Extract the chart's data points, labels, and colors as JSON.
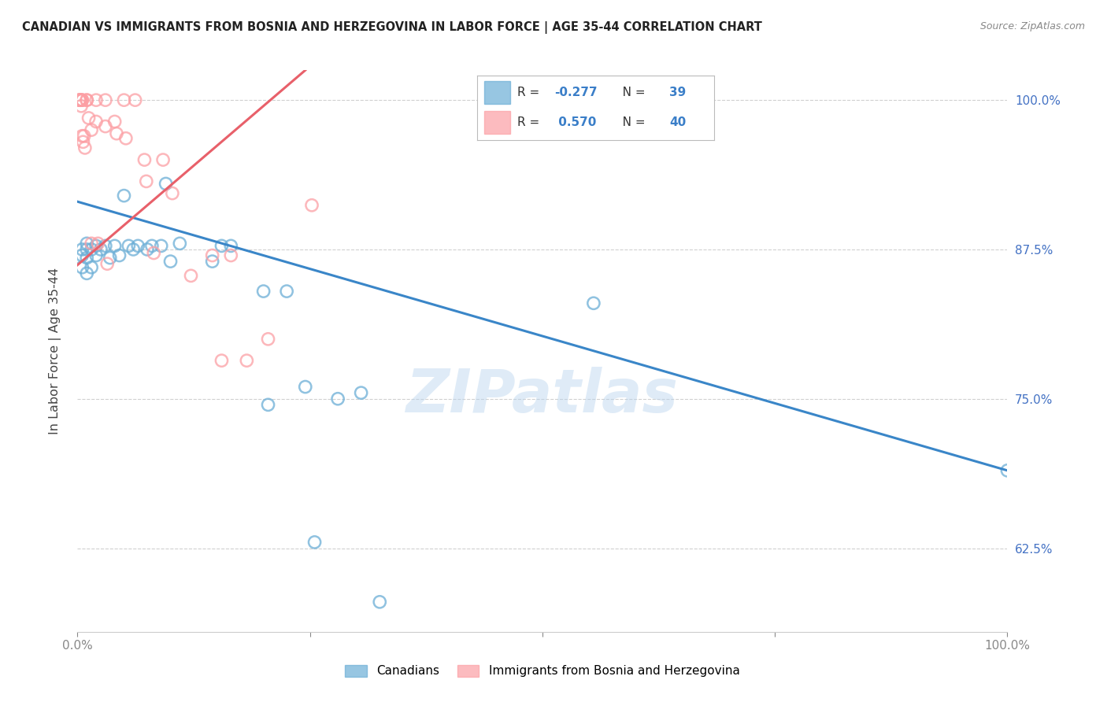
{
  "title": "CANADIAN VS IMMIGRANTS FROM BOSNIA AND HERZEGOVINA IN LABOR FORCE | AGE 35-44 CORRELATION CHART",
  "source": "Source: ZipAtlas.com",
  "ylabel": "In Labor Force | Age 35-44",
  "xlim": [
    0.0,
    1.0
  ],
  "ylim": [
    0.555,
    1.025
  ],
  "yticks": [
    0.625,
    0.75,
    0.875,
    1.0
  ],
  "ytick_labels": [
    "62.5%",
    "75.0%",
    "87.5%",
    "100.0%"
  ],
  "xticks": [
    0.0,
    0.25,
    0.5,
    0.75,
    1.0
  ],
  "xtick_labels": [
    "0.0%",
    "",
    "",
    "",
    "100.0%"
  ],
  "watermark": "ZIPatlas",
  "legend_label_canadian": "Canadians",
  "legend_label_immigrants": "Immigrants from Bosnia and Herzegovina",
  "r_canadian": "-0.277",
  "n_canadian": "39",
  "r_immigrants": "0.570",
  "n_immigrants": "40",
  "blue_color": "#6baed6",
  "pink_color": "#fc9fa4",
  "blue_line_color": "#3a86c8",
  "pink_line_color": "#e8606a",
  "blue_scatter_edge": "#5a9fc8",
  "pink_scatter_edge": "#e87880",
  "canadians_x": [
    0.005,
    0.005,
    0.005,
    0.01,
    0.01,
    0.01,
    0.01,
    0.015,
    0.015,
    0.02,
    0.02,
    0.025,
    0.03,
    0.035,
    0.04,
    0.045,
    0.05,
    0.055,
    0.06,
    0.065,
    0.075,
    0.08,
    0.09,
    0.095,
    0.1,
    0.11,
    0.145,
    0.155,
    0.165,
    0.2,
    0.205,
    0.225,
    0.245,
    0.255,
    0.28,
    0.305,
    0.325,
    0.555,
    1.0
  ],
  "canadians_y": [
    0.875,
    0.87,
    0.86,
    0.88,
    0.875,
    0.868,
    0.855,
    0.875,
    0.86,
    0.878,
    0.87,
    0.875,
    0.878,
    0.868,
    0.878,
    0.87,
    0.92,
    0.878,
    0.875,
    0.878,
    0.875,
    0.878,
    0.878,
    0.93,
    0.865,
    0.88,
    0.865,
    0.878,
    0.878,
    0.84,
    0.745,
    0.84,
    0.76,
    0.63,
    0.75,
    0.755,
    0.58,
    0.83,
    0.69
  ],
  "immigrants_x": [
    0.002,
    0.002,
    0.003,
    0.003,
    0.004,
    0.004,
    0.005,
    0.005,
    0.005,
    0.006,
    0.007,
    0.008,
    0.01,
    0.01,
    0.012,
    0.015,
    0.015,
    0.02,
    0.02,
    0.022,
    0.03,
    0.03,
    0.032,
    0.04,
    0.042,
    0.05,
    0.052,
    0.062,
    0.072,
    0.074,
    0.082,
    0.092,
    0.102,
    0.122,
    0.145,
    0.155,
    0.165,
    0.182,
    0.205,
    0.252
  ],
  "immigrants_y": [
    1.0,
    1.0,
    1.0,
    1.0,
    1.0,
    0.995,
    1.0,
    1.0,
    0.97,
    0.965,
    0.97,
    0.96,
    1.0,
    1.0,
    0.985,
    0.975,
    0.88,
    1.0,
    0.982,
    0.88,
    1.0,
    0.978,
    0.863,
    0.982,
    0.972,
    1.0,
    0.968,
    1.0,
    0.95,
    0.932,
    0.872,
    0.95,
    0.922,
    0.853,
    0.87,
    0.782,
    0.87,
    0.782,
    0.8,
    0.912
  ],
  "blue_trend_x": [
    0.0,
    1.0
  ],
  "blue_trend_y": [
    0.915,
    0.69
  ],
  "pink_trend_x": [
    0.0,
    0.245
  ],
  "pink_trend_y": [
    0.862,
    1.025
  ]
}
